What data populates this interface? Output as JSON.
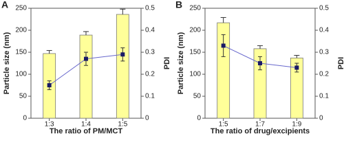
{
  "chart_data": [
    {
      "type": "bar-line",
      "panel": "A",
      "xlabel": "The ratio of PM/MCT",
      "ylabel": "Particle size (nm)",
      "y2label": "PDI",
      "categories": [
        "1:3",
        "1:4",
        "1:5"
      ],
      "series": [
        {
          "type": "bar",
          "color": "#ffff99",
          "values": [
            147,
            189,
            236
          ],
          "errors": [
            7,
            8,
            12
          ]
        },
        {
          "type": "line",
          "axis": "y2",
          "color": "#6666cc",
          "marker_color": "#1a1a66",
          "values": [
            0.15,
            0.27,
            0.29
          ],
          "errors": [
            0.02,
            0.03,
            0.03
          ]
        }
      ],
      "ylim": [
        0,
        250
      ],
      "yticks": [
        0,
        50,
        100,
        150,
        200,
        250
      ],
      "y2lim": [
        0,
        0.5
      ],
      "y2ticks": [
        0,
        0.1,
        0.2,
        0.3,
        0.4,
        0.5
      ]
    },
    {
      "type": "bar-line",
      "panel": "B",
      "xlabel": "The ratio of drug/excipients",
      "ylabel": "Particle size (nm)",
      "y2label": "PDI",
      "categories": [
        "1:5",
        "1:7",
        "1:9"
      ],
      "series": [
        {
          "type": "bar",
          "color": "#ffff99",
          "values": [
            217,
            158,
            137
          ],
          "errors": [
            12,
            7,
            6
          ]
        },
        {
          "type": "line",
          "axis": "y2",
          "color": "#6666cc",
          "marker_color": "#1a1a66",
          "values": [
            0.33,
            0.25,
            0.23
          ],
          "errors": [
            0.05,
            0.03,
            0.02
          ]
        }
      ],
      "ylim": [
        0,
        250
      ],
      "yticks": [
        0,
        50,
        100,
        150,
        200,
        250
      ],
      "y2lim": [
        0,
        0.5
      ],
      "y2ticks": [
        0,
        0.1,
        0.2,
        0.3,
        0.4,
        0.5
      ]
    }
  ]
}
